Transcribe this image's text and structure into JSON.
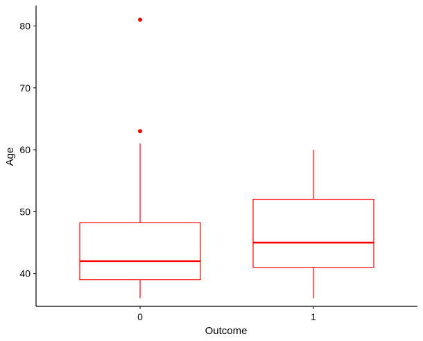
{
  "chart_data": {
    "type": "boxplot",
    "title": "",
    "xlabel": "Outcome",
    "ylabel": "Age",
    "categories": [
      "0",
      "1"
    ],
    "ylim": [
      34.7,
      83.3
    ],
    "yticks": [
      40,
      50,
      60,
      70,
      80
    ],
    "grid": false,
    "legend": "none",
    "color": "#ff0000",
    "boxes": [
      {
        "category": "0",
        "whisker_low": 36,
        "q1": 39,
        "median": 42,
        "q3": 48.2,
        "whisker_high": 61,
        "outliers": [
          63,
          81
        ]
      },
      {
        "category": "1",
        "whisker_low": 36,
        "q1": 41,
        "median": 45,
        "q3": 52,
        "whisker_high": 60,
        "outliers": []
      }
    ]
  }
}
